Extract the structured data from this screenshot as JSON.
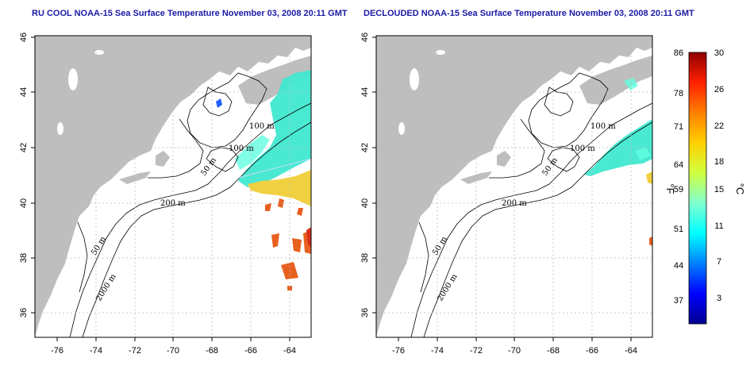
{
  "maps": [
    {
      "title": "RU COOL NOAA-15 Sea Surface Temperature November 03, 2008 20:11 GMT",
      "x_ticks": [
        "-76",
        "-74",
        "-72",
        "-70",
        "-68",
        "-66",
        "-64"
      ],
      "y_ticks": [
        "46",
        "44",
        "42",
        "40",
        "38",
        "36"
      ],
      "contour_labels": [
        "100 m",
        "100 m",
        "50 m",
        "200 m",
        "50 m",
        "2000 m"
      ]
    },
    {
      "title": "DECLOUDED NOAA-15 Sea Surface Temperature November 03, 2008 20:11 GMT",
      "x_ticks": [
        "-76",
        "-74",
        "-72",
        "-70",
        "-68",
        "-66",
        "-64"
      ],
      "y_ticks": [
        "46",
        "44",
        "42",
        "40",
        "38",
        "36"
      ],
      "contour_labels": [
        "100 m",
        "100 m",
        "50 m",
        "200 m",
        "50 m",
        "2000 m"
      ]
    }
  ],
  "colorbar": {
    "fahrenheit_ticks": [
      "86",
      "78",
      "71",
      "64",
      "59",
      "51",
      "44",
      "37"
    ],
    "celsius_ticks": [
      "30",
      "26",
      "22",
      "18",
      "15",
      "11",
      "7",
      "3"
    ],
    "fahrenheit_label": "°F",
    "celsius_label": "°C",
    "colors": [
      "#00008f",
      "#0000ff",
      "#0080ff",
      "#00ffff",
      "#80ffcf",
      "#d0ff40",
      "#ffd000",
      "#ff8000",
      "#ff2000",
      "#8f0000"
    ]
  }
}
